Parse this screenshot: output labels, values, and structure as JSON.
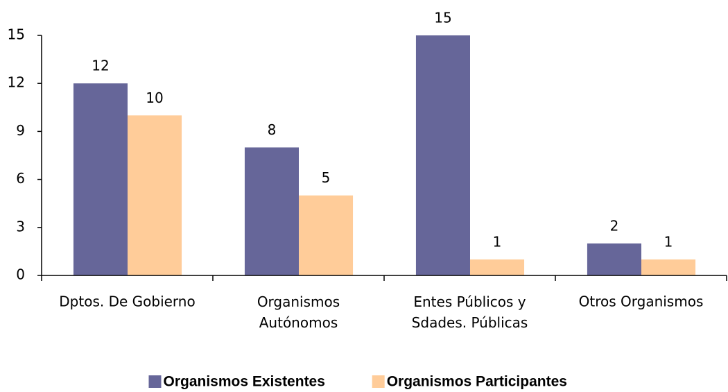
{
  "chart_data": {
    "type": "bar",
    "categories": [
      "Dptos. De Gobierno",
      "Organismos\nAutónomos",
      "Entes Públicos y\nSdades. Públicas",
      "Otros Organismos"
    ],
    "series": [
      {
        "name": "Organismos Existentes",
        "color": "#666699",
        "values": [
          12,
          8,
          15,
          2
        ]
      },
      {
        "name": "Organismos Participantes",
        "color": "#ffcc99",
        "values": [
          10,
          5,
          1,
          1
        ]
      }
    ],
    "ylim": [
      0,
      15
    ],
    "yticks": [
      0,
      3,
      6,
      9,
      12,
      15
    ],
    "legend": "bottom"
  }
}
